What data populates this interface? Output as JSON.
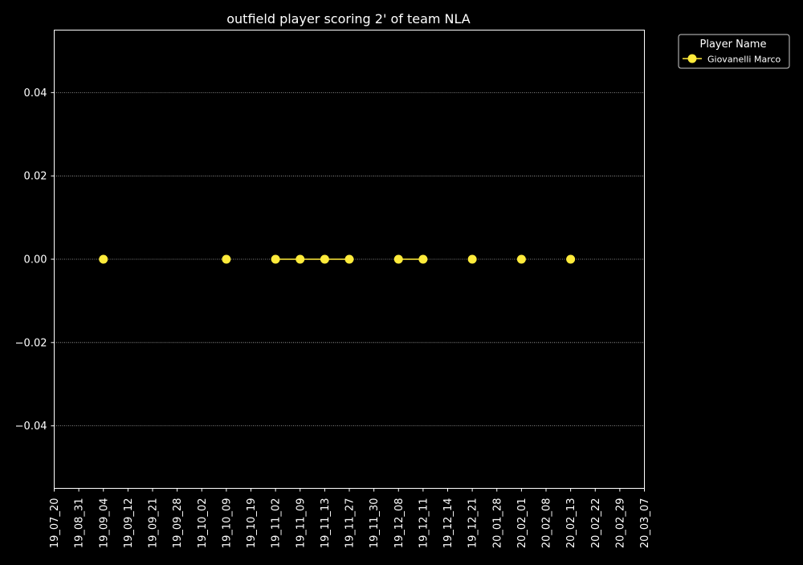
{
  "chart_data": {
    "type": "line",
    "title": "outfield player scoring 2' of team NLA",
    "xlabel": "",
    "ylabel": "",
    "categories": [
      "19_07_20",
      "19_08_31",
      "19_09_04",
      "19_09_12",
      "19_09_21",
      "19_09_28",
      "19_10_02",
      "19_10_09",
      "19_10_19",
      "19_11_02",
      "19_11_09",
      "19_11_13",
      "19_11_27",
      "19_11_30",
      "19_12_08",
      "19_12_11",
      "19_12_14",
      "19_12_21",
      "20_01_28",
      "20_02_01",
      "20_02_08",
      "20_02_13",
      "20_02_22",
      "20_02_29",
      "20_03_07"
    ],
    "ylim": [
      -0.055,
      0.055
    ],
    "yticks": [
      -0.04,
      -0.02,
      0.0,
      0.02,
      0.04
    ],
    "ytick_labels": [
      "−0.04",
      "−0.02",
      "0.00",
      "0.02",
      "0.04"
    ],
    "grid": true,
    "legend": {
      "title": "Player Name",
      "position": "outside-top-right"
    },
    "series": [
      {
        "name": "Giovanelli Marco",
        "color": "#ffeb3b",
        "points": [
          {
            "x": "19_09_04",
            "y": 0
          },
          {
            "x": "19_10_09",
            "y": 0
          },
          {
            "x": "19_11_02",
            "y": 0
          },
          {
            "x": "19_11_09",
            "y": 0
          },
          {
            "x": "19_11_13",
            "y": 0
          },
          {
            "x": "19_11_27",
            "y": 0
          },
          {
            "x": "19_12_08",
            "y": 0
          },
          {
            "x": "19_12_11",
            "y": 0
          },
          {
            "x": "19_12_21",
            "y": 0
          },
          {
            "x": "20_02_01",
            "y": 0
          },
          {
            "x": "20_02_13",
            "y": 0
          }
        ],
        "segments": [
          [
            "19_11_02",
            "19_11_27"
          ],
          [
            "19_12_08",
            "19_12_11"
          ]
        ]
      }
    ]
  }
}
